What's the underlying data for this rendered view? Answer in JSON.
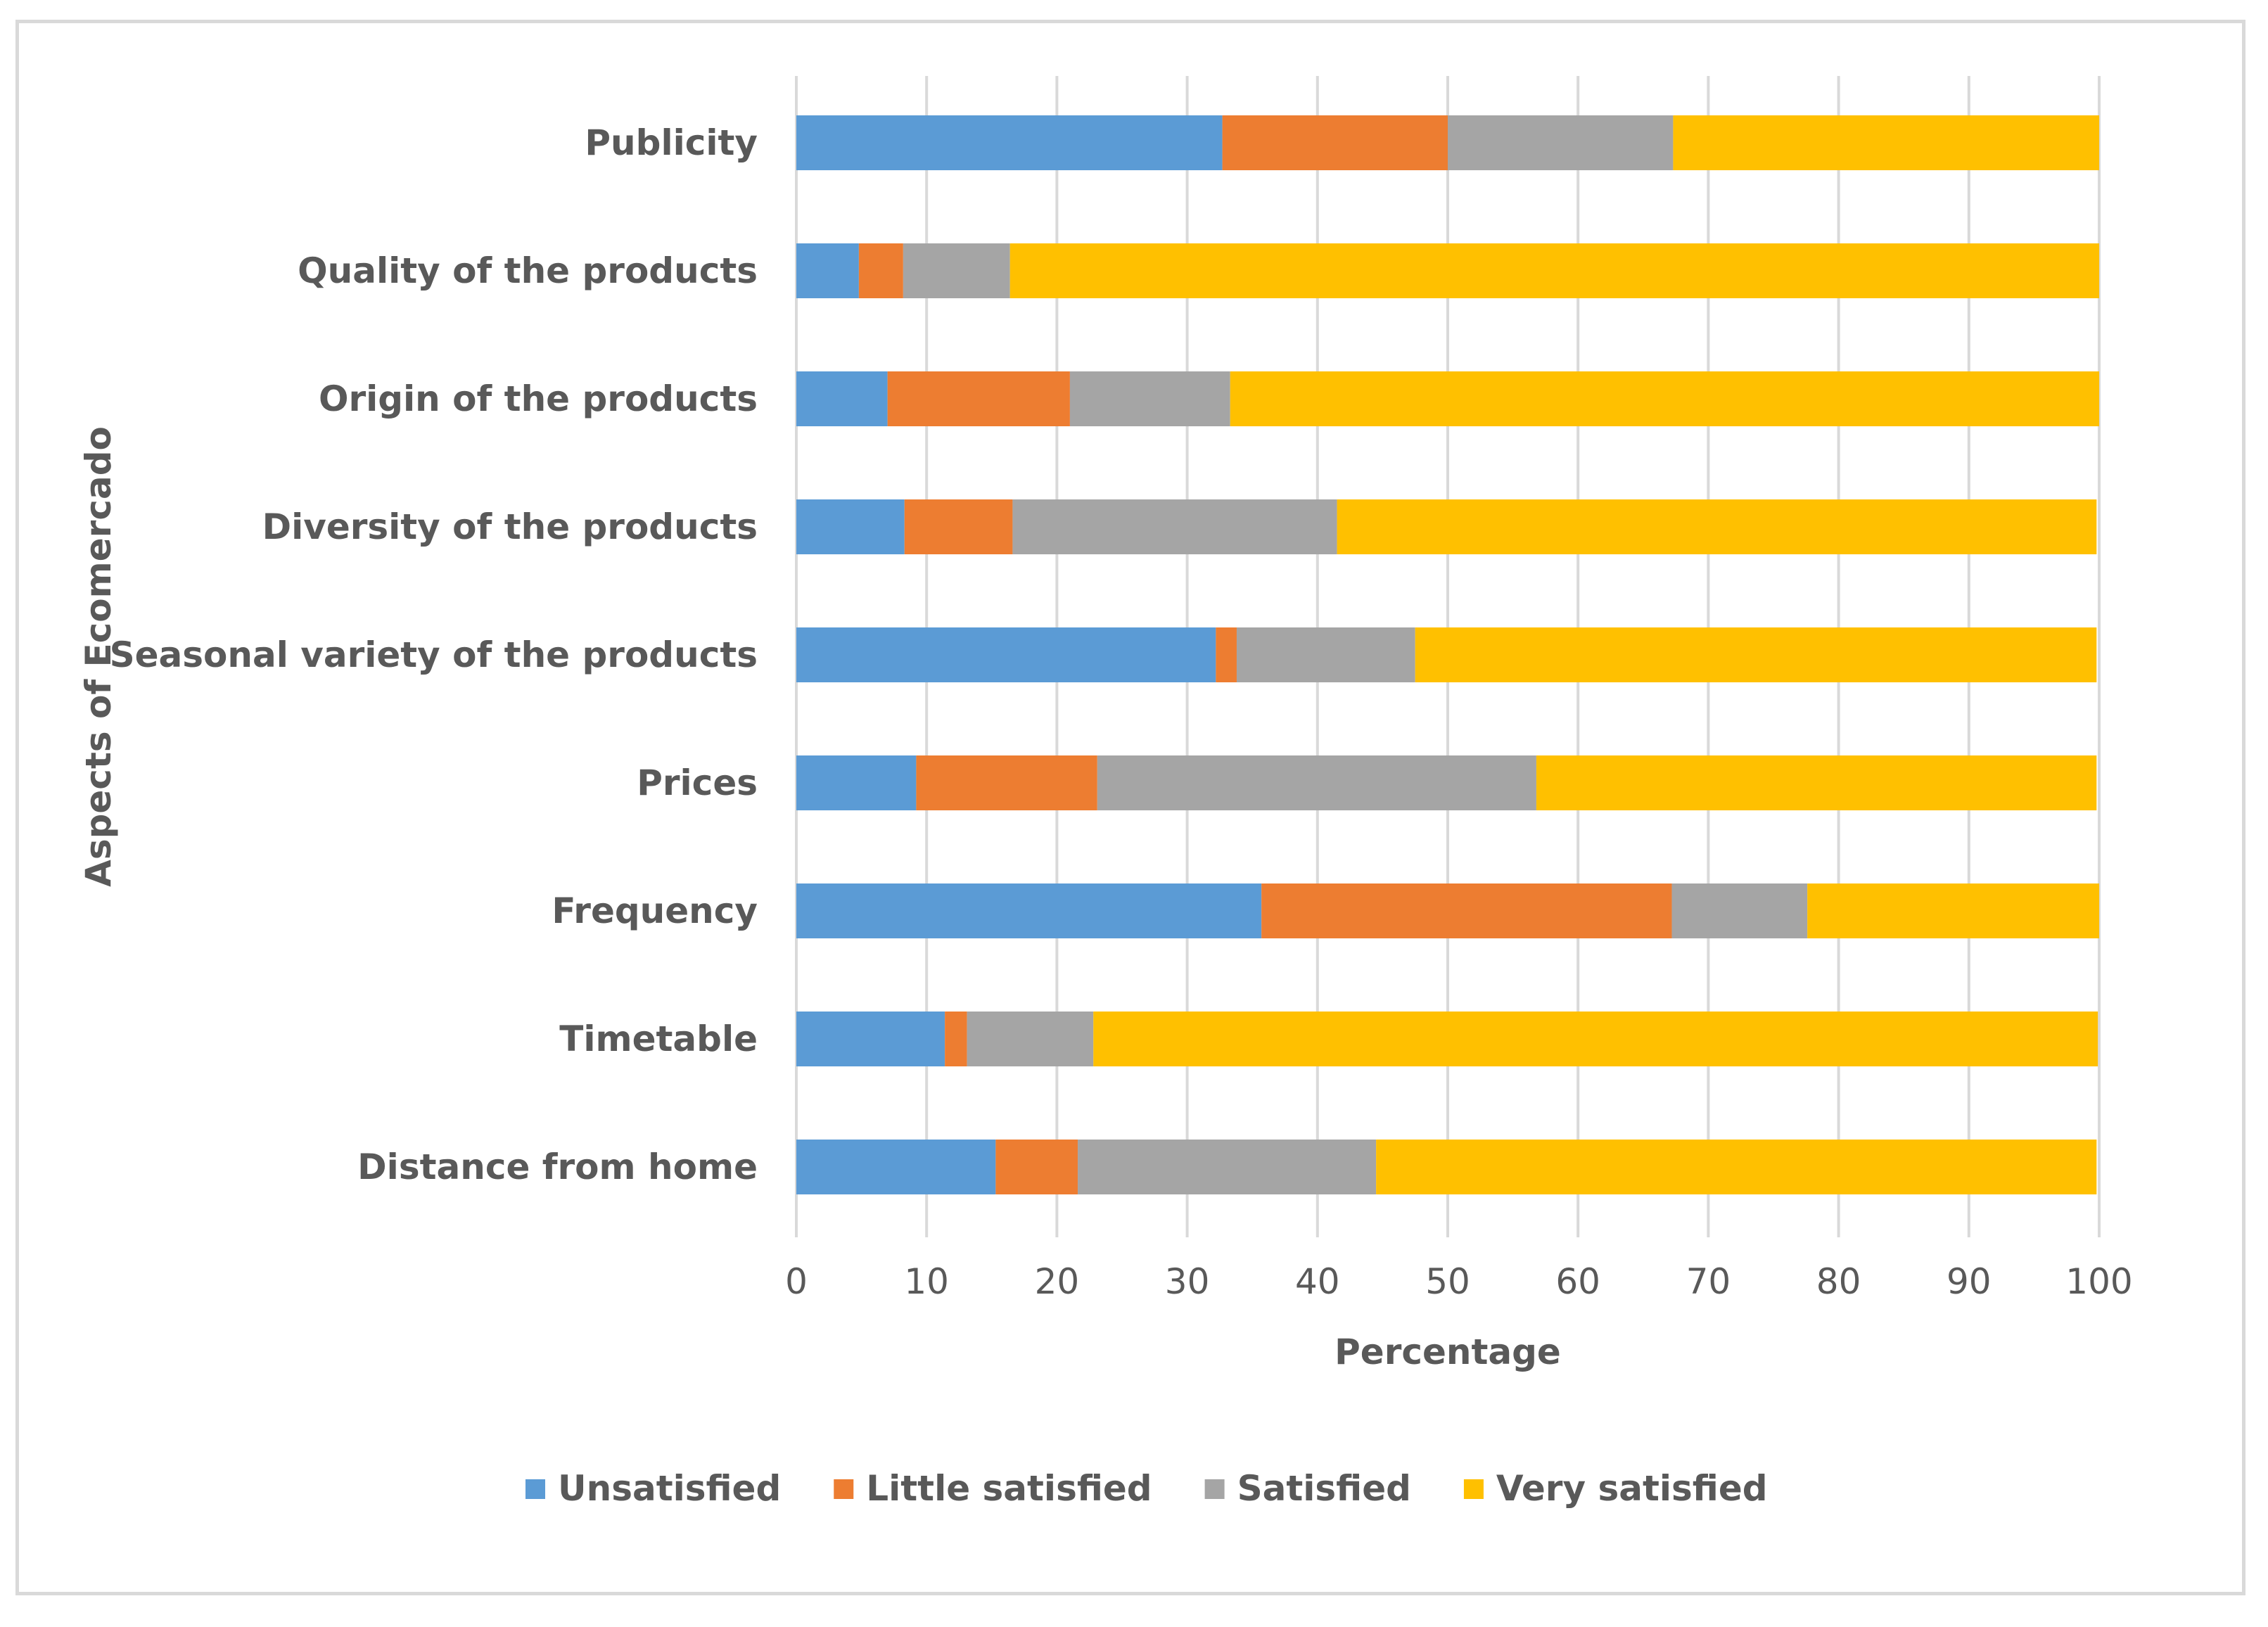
{
  "chart_data": {
    "type": "bar",
    "orientation": "horizontal",
    "stacked": true,
    "title": "",
    "xlabel": "Percentage",
    "ylabel": "Aspects of Ecomercado",
    "xlim": [
      0,
      100
    ],
    "xticks": [
      "0",
      "10",
      "20",
      "30",
      "40",
      "50",
      "60",
      "70",
      "80",
      "90",
      "100"
    ],
    "grid": "vertical",
    "legend_position": "bottom",
    "categories": [
      "Publicity",
      "Quality of the products",
      "Origin of the products",
      "Diversity of the products",
      "Seasonal variety of the products",
      "Prices",
      "Frequency",
      "Timetable",
      "Distance from home"
    ],
    "series": [
      {
        "name": "Unsatisfied",
        "color": "#5b9bd5",
        "values": [
          32.7,
          4.8,
          7.0,
          8.3,
          32.2,
          9.2,
          35.7,
          11.4,
          15.3
        ]
      },
      {
        "name": "Little satisfied",
        "color": "#ed7d31",
        "values": [
          17.3,
          3.4,
          14.0,
          8.3,
          1.6,
          13.9,
          31.5,
          1.7,
          6.3
        ]
      },
      {
        "name": "Satisfied",
        "color": "#a5a5a5",
        "values": [
          17.3,
          8.2,
          12.3,
          24.9,
          13.7,
          33.7,
          10.4,
          9.7,
          22.9
        ]
      },
      {
        "name": "Very satisfied",
        "color": "#ffc000",
        "values": [
          32.7,
          83.6,
          66.7,
          58.3,
          52.3,
          43.0,
          22.4,
          77.1,
          55.3
        ]
      }
    ]
  }
}
